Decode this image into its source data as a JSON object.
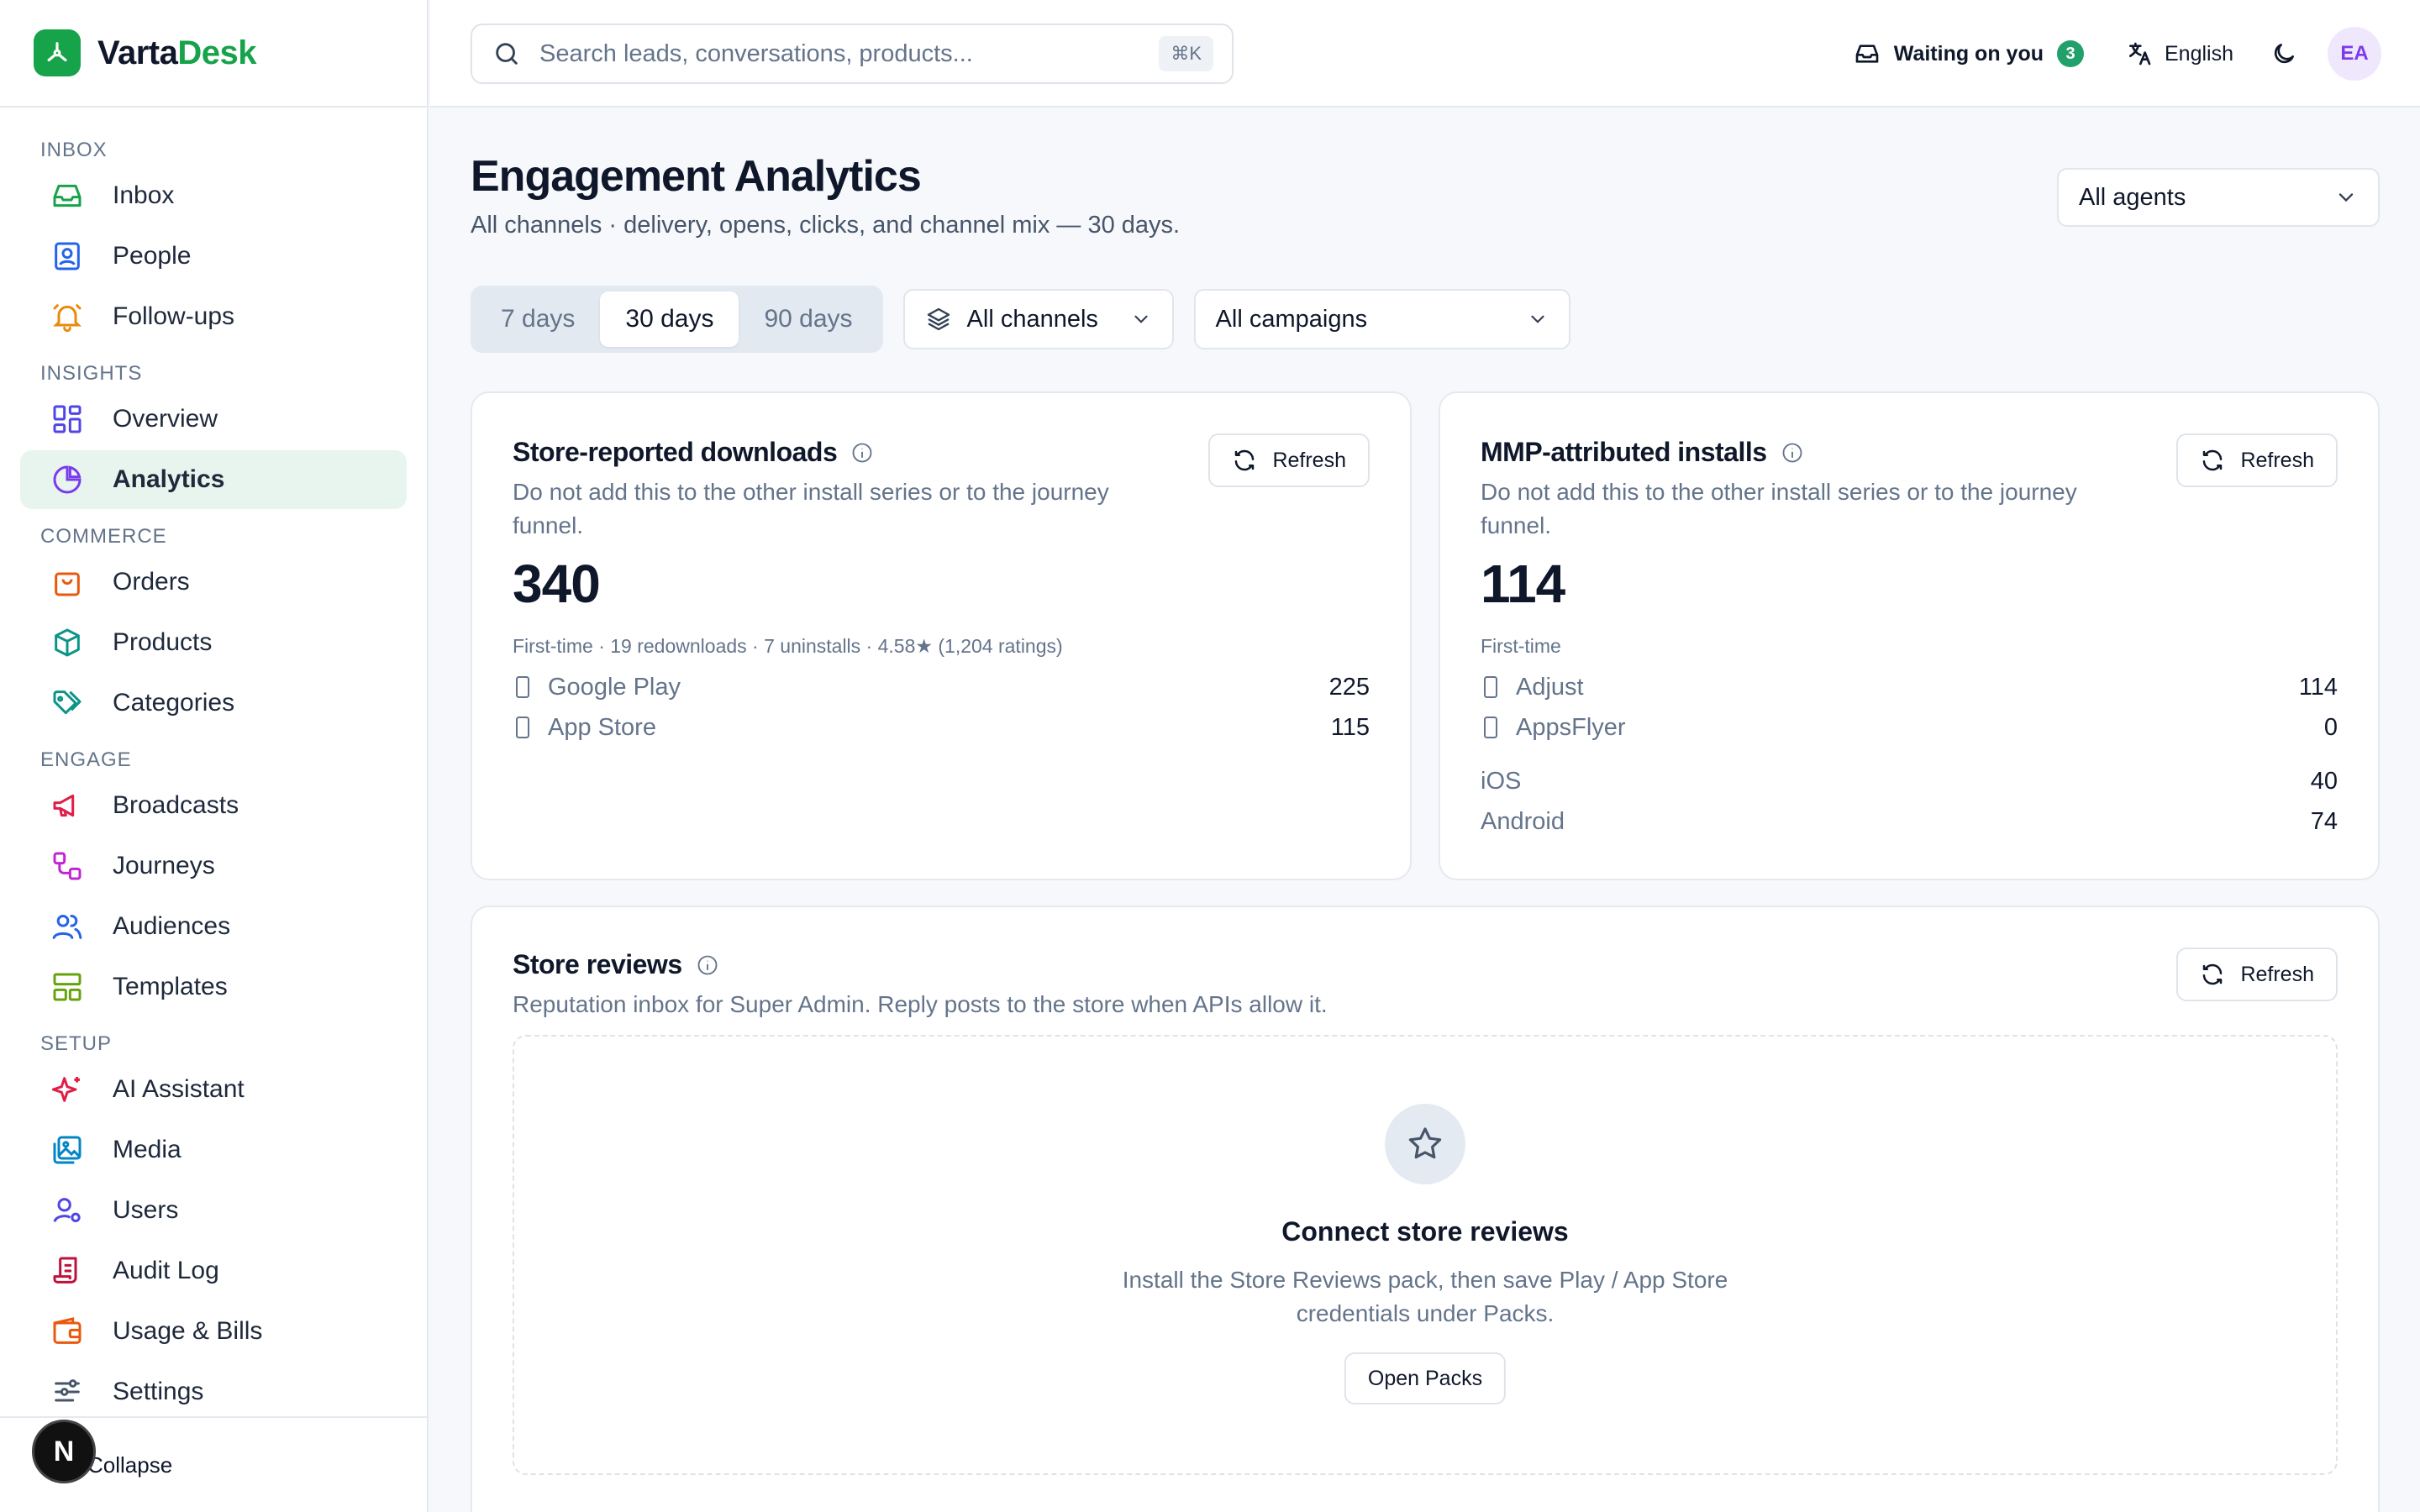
{
  "brand": {
    "name_prefix": "Varta",
    "name_suffix": "Desk"
  },
  "colors": {
    "accent": "#16a34a",
    "active_bg": "#e8f5ee",
    "badge": "#22a06b"
  },
  "sidebar": {
    "sections": [
      {
        "title": "INBOX",
        "items": [
          {
            "label": "Inbox",
            "icon": "inbox-icon"
          },
          {
            "label": "People",
            "icon": "contact-card-icon"
          },
          {
            "label": "Follow-ups",
            "icon": "bell-icon"
          }
        ]
      },
      {
        "title": "INSIGHTS",
        "items": [
          {
            "label": "Overview",
            "icon": "dashboard-icon"
          },
          {
            "label": "Analytics",
            "icon": "pie-chart-icon",
            "active": true
          }
        ]
      },
      {
        "title": "COMMERCE",
        "items": [
          {
            "label": "Orders",
            "icon": "shopping-bag-icon"
          },
          {
            "label": "Products",
            "icon": "box-icon"
          },
          {
            "label": "Categories",
            "icon": "tags-icon"
          }
        ]
      },
      {
        "title": "ENGAGE",
        "items": [
          {
            "label": "Broadcasts",
            "icon": "megaphone-icon"
          },
          {
            "label": "Journeys",
            "icon": "workflow-icon"
          },
          {
            "label": "Audiences",
            "icon": "users-icon"
          },
          {
            "label": "Templates",
            "icon": "layout-icon"
          }
        ]
      },
      {
        "title": "SETUP",
        "items": [
          {
            "label": "AI Assistant",
            "icon": "sparkles-icon"
          },
          {
            "label": "Media",
            "icon": "image-icon"
          },
          {
            "label": "Users",
            "icon": "user-cog-icon"
          },
          {
            "label": "Audit Log",
            "icon": "scroll-icon"
          },
          {
            "label": "Usage & Bills",
            "icon": "wallet-icon"
          },
          {
            "label": "Settings",
            "icon": "sliders-icon"
          }
        ]
      }
    ],
    "collapse_label": "Collapse",
    "dev_badge": "N"
  },
  "topbar": {
    "search_placeholder": "Search leads, conversations, products...",
    "shortcut": "⌘K",
    "waiting_label": "Waiting on you",
    "waiting_count": "3",
    "language": "English",
    "avatar_initials": "EA"
  },
  "page": {
    "title": "Engagement Analytics",
    "subtitle": "All channels · delivery, opens, clicks, and channel mix — 30 days.",
    "agent_filter": "All agents",
    "ranges": [
      "7 days",
      "30 days",
      "90 days"
    ],
    "active_range": "30 days",
    "channel_filter": "All channels",
    "campaign_filter": "All campaigns"
  },
  "store_downloads": {
    "title": "Store-reported downloads",
    "description": "Do not add this to the other install series or to the journey funnel.",
    "refresh": "Refresh",
    "total": "340",
    "meta": "First-time · 19 redownloads · 7 uninstalls · 4.58★ (1,204 ratings)",
    "rows": [
      {
        "label": "Google Play",
        "value": "225"
      },
      {
        "label": "App Store",
        "value": "115"
      }
    ]
  },
  "mmp_installs": {
    "title": "MMP-attributed installs",
    "description": "Do not add this to the other install series or to the journey funnel.",
    "refresh": "Refresh",
    "total": "114",
    "meta": "First-time",
    "rows": [
      {
        "label": "Adjust",
        "value": "114"
      },
      {
        "label": "AppsFlyer",
        "value": "0"
      }
    ],
    "platforms": [
      {
        "label": "iOS",
        "value": "40"
      },
      {
        "label": "Android",
        "value": "74"
      }
    ]
  },
  "store_reviews": {
    "title": "Store reviews",
    "description": "Reputation inbox for Super Admin. Reply posts to the store when APIs allow it.",
    "refresh": "Refresh",
    "empty_title": "Connect store reviews",
    "empty_desc": "Install the Store Reviews pack, then save Play / App Store credentials under Packs.",
    "cta": "Open Packs"
  }
}
